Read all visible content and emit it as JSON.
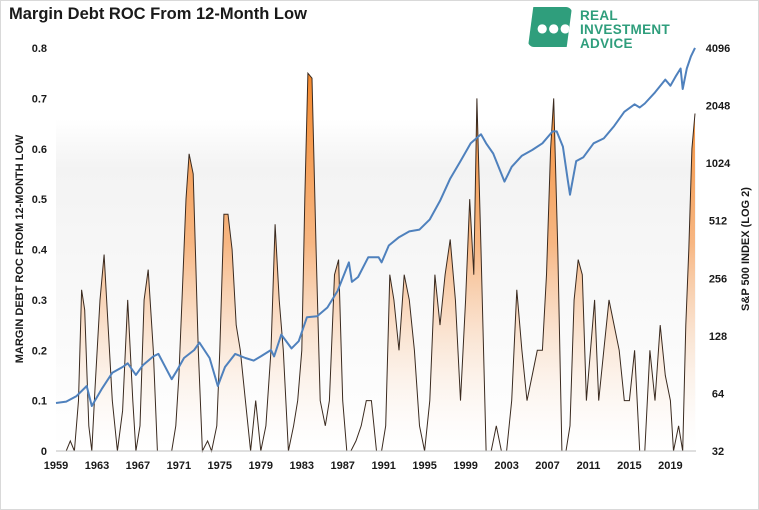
{
  "header": {
    "title": "Margin Debt ROC From 12-Month Low"
  },
  "logo": {
    "line1": "REAL",
    "line2": "INVESTMENT",
    "line3": "ADVICE",
    "color": "#2f9e7c"
  },
  "chart_data": {
    "type": "area",
    "title": "Margin Debt ROC From 12-Month Low",
    "xlabel": "",
    "ylabel": "MARGIN DEBT ROC FROM 12-MONTH LOW",
    "y2label": "S&P 500 INDEX (LOG 2)",
    "x_range": [
      1959,
      2021.5
    ],
    "ylim": [
      0,
      0.8
    ],
    "y2lim": [
      32,
      4096
    ],
    "y2_scale": "log2",
    "x_tick_labels": [
      "1959",
      "1963",
      "1967",
      "1971",
      "1975",
      "1979",
      "1983",
      "1987",
      "1991",
      "1995",
      "1999",
      "2003",
      "2007",
      "2011",
      "2015",
      "2019"
    ],
    "y_tick_labels": [
      "0",
      "0.1",
      "0.2",
      "0.3",
      "0.4",
      "0.5",
      "0.6",
      "0.7",
      "0.8"
    ],
    "y2_tick_labels": [
      "32",
      "64",
      "128",
      "256",
      "512",
      "1024",
      "2048",
      "4096"
    ],
    "grid": false,
    "series": [
      {
        "axis": "left",
        "color": "#f58220",
        "x": [
          1959.0,
          1960.0,
          1960.4,
          1960.8,
          1961.2,
          1961.5,
          1961.8,
          1962.2,
          1962.5,
          1962.8,
          1963.3,
          1963.7,
          1964.0,
          1964.5,
          1965.0,
          1965.5,
          1966.0,
          1966.5,
          1966.8,
          1967.2,
          1967.6,
          1968.0,
          1968.5,
          1968.9,
          1969.3,
          1969.8,
          1970.3,
          1970.7,
          1971.0,
          1971.3,
          1971.7,
          1972.0,
          1972.4,
          1972.9,
          1973.3,
          1973.8,
          1974.2,
          1974.7,
          1975.0,
          1975.4,
          1975.8,
          1976.2,
          1976.6,
          1977.0,
          1977.5,
          1978.0,
          1978.5,
          1979.0,
          1979.5,
          1980.0,
          1980.4,
          1980.8,
          1981.2,
          1981.7,
          1982.2,
          1982.6,
          1983.0,
          1983.3,
          1983.6,
          1984.0,
          1984.4,
          1984.8,
          1985.3,
          1985.7,
          1986.2,
          1986.6,
          1987.0,
          1987.4,
          1987.8,
          1988.3,
          1988.8,
          1989.3,
          1989.8,
          1990.3,
          1990.8,
          1991.2,
          1991.6,
          1992.0,
          1992.5,
          1993.0,
          1993.5,
          1994.0,
          1994.5,
          1995.0,
          1995.5,
          1996.0,
          1996.5,
          1997.0,
          1997.5,
          1998.0,
          1998.5,
          1999.0,
          1999.4,
          1999.8,
          2000.1,
          2000.5,
          2001.0,
          2001.5,
          2002.0,
          2002.5,
          2003.0,
          2003.5,
          2004.0,
          2004.5,
          2005.0,
          2005.5,
          2006.0,
          2006.5,
          2006.9,
          2007.3,
          2007.6,
          2008.0,
          2008.4,
          2008.8,
          2009.2,
          2009.6,
          2010.0,
          2010.4,
          2010.8,
          2011.2,
          2011.6,
          2012.0,
          2012.5,
          2013.0,
          2013.5,
          2014.0,
          2014.5,
          2015.0,
          2015.5,
          2016.0,
          2016.5,
          2017.0,
          2017.5,
          2018.0,
          2018.5,
          2019.0,
          2019.3,
          2019.8,
          2020.2,
          2020.5,
          2020.8,
          2021.1,
          2021.4
        ],
        "y": [
          0,
          0,
          0.02,
          0,
          0.1,
          0.32,
          0.28,
          0.05,
          0,
          0.12,
          0.3,
          0.39,
          0.28,
          0.1,
          0,
          0.08,
          0.3,
          0.1,
          0,
          0.05,
          0.3,
          0.36,
          0.2,
          0,
          0,
          0,
          0,
          0.05,
          0.15,
          0.3,
          0.5,
          0.59,
          0.55,
          0.2,
          0,
          0.02,
          0,
          0.05,
          0.2,
          0.47,
          0.47,
          0.4,
          0.25,
          0.2,
          0.1,
          0,
          0.1,
          0,
          0.05,
          0.2,
          0.45,
          0.3,
          0.2,
          0,
          0.05,
          0.1,
          0.2,
          0.5,
          0.75,
          0.74,
          0.4,
          0.1,
          0.05,
          0.1,
          0.35,
          0.38,
          0.1,
          0,
          0,
          0.02,
          0.05,
          0.1,
          0.1,
          0,
          0,
          0.05,
          0.35,
          0.3,
          0.2,
          0.35,
          0.3,
          0.2,
          0.05,
          0,
          0.1,
          0.35,
          0.25,
          0.35,
          0.42,
          0.3,
          0.1,
          0.3,
          0.5,
          0.35,
          0.7,
          0.4,
          0,
          0,
          0.05,
          0,
          0,
          0.1,
          0.32,
          0.2,
          0.1,
          0.15,
          0.2,
          0.2,
          0.35,
          0.6,
          0.7,
          0.4,
          0,
          0,
          0.05,
          0.3,
          0.38,
          0.35,
          0.1,
          0.2,
          0.3,
          0.1,
          0.2,
          0.3,
          0.25,
          0.2,
          0.1,
          0.1,
          0.2,
          0,
          0,
          0.2,
          0.1,
          0.25,
          0.15,
          0.1,
          0,
          0.05,
          0,
          0.25,
          0.4,
          0.6,
          0.67
        ]
      },
      {
        "axis": "right",
        "color": "#4f81bd",
        "x": [
          1959.0,
          1960.0,
          1961.0,
          1962.0,
          1962.5,
          1963.5,
          1964.5,
          1965.5,
          1966.0,
          1966.8,
          1967.5,
          1968.5,
          1969.0,
          1970.3,
          1970.8,
          1971.5,
          1972.5,
          1973.0,
          1974.0,
          1974.8,
          1975.5,
          1976.5,
          1977.5,
          1978.3,
          1979.0,
          1980.0,
          1980.3,
          1981.0,
          1982.0,
          1982.7,
          1983.5,
          1984.5,
          1985.5,
          1986.5,
          1987.6,
          1987.9,
          1988.5,
          1989.5,
          1990.5,
          1990.8,
          1991.5,
          1992.5,
          1993.5,
          1994.5,
          1995.5,
          1996.5,
          1997.5,
          1998.5,
          1999.5,
          2000.5,
          2001.0,
          2001.7,
          2002.5,
          2002.8,
          2003.5,
          2004.5,
          2005.5,
          2006.5,
          2007.5,
          2007.9,
          2008.5,
          2009.0,
          2009.2,
          2009.8,
          2010.5,
          2011.5,
          2012.5,
          2013.5,
          2014.5,
          2015.5,
          2016.0,
          2016.5,
          2017.5,
          2018.5,
          2019.0,
          2019.5,
          2020.0,
          2020.2,
          2020.6,
          2021.0,
          2021.4
        ],
        "y": [
          57,
          58,
          62,
          70,
          55,
          68,
          82,
          88,
          92,
          80,
          90,
          100,
          103,
          76,
          84,
          98,
          108,
          118,
          98,
          70,
          88,
          103,
          98,
          95,
          100,
          108,
          100,
          130,
          110,
          120,
          160,
          162,
          180,
          220,
          310,
          245,
          260,
          330,
          330,
          310,
          380,
          420,
          450,
          460,
          520,
          650,
          850,
          1050,
          1300,
          1450,
          1300,
          1150,
          900,
          820,
          980,
          1120,
          1200,
          1300,
          1500,
          1500,
          1250,
          820,
          700,
          1050,
          1100,
          1300,
          1380,
          1600,
          1900,
          2080,
          2000,
          2100,
          2400,
          2800,
          2600,
          2900,
          3200,
          2500,
          3200,
          3700,
          4100
        ]
      }
    ]
  }
}
